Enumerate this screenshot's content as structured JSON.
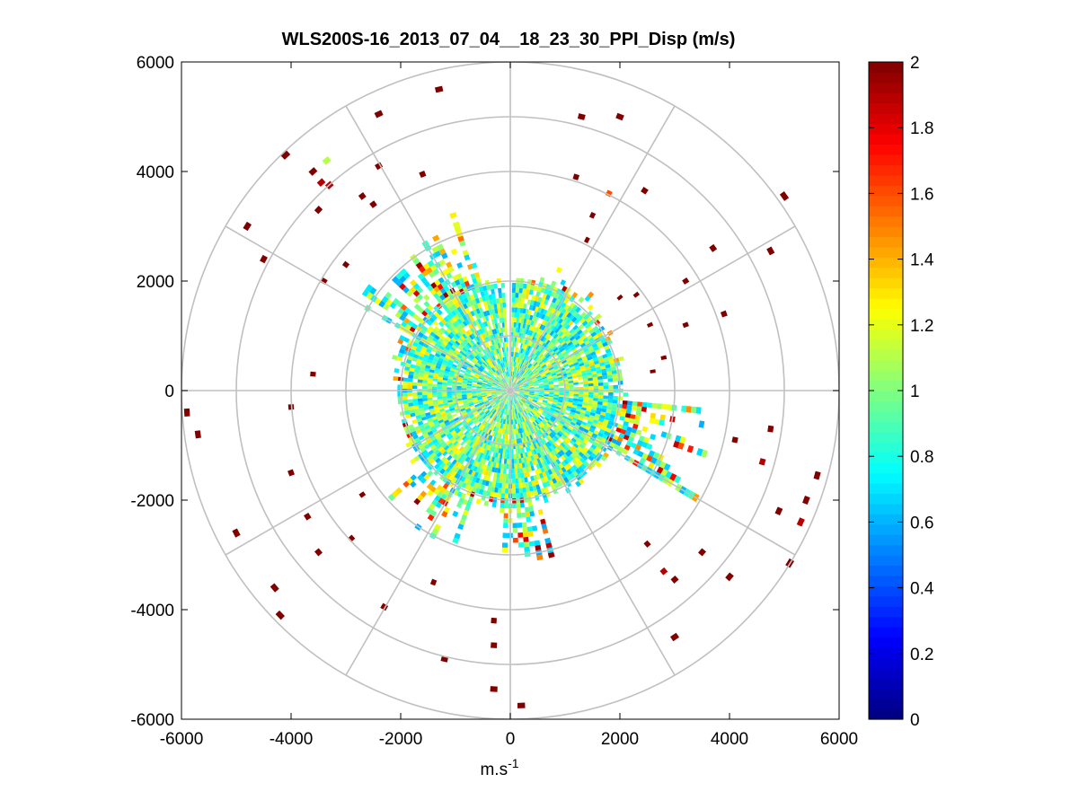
{
  "chart_data": {
    "type": "polar-heatmap",
    "title": "WLS200S-16_2013_07_04__18_23_30_PPI_Disp (m/s)",
    "xlabel": "m.s",
    "xlabel_superscript": "-1",
    "ylabel": "",
    "xlim": [
      -6000,
      6000
    ],
    "ylim": [
      -6000,
      6000
    ],
    "x_ticks": [
      "-6000",
      "-4000",
      "-2000",
      "0",
      "2000",
      "4000",
      "6000"
    ],
    "y_ticks": [
      "6000",
      "4000",
      "2000",
      "0",
      "-2000",
      "-4000",
      "-6000"
    ],
    "x_tick_values": [
      -6000,
      -4000,
      -2000,
      0,
      2000,
      4000,
      6000
    ],
    "y_tick_values": [
      6000,
      4000,
      2000,
      0,
      -2000,
      -4000,
      -6000
    ],
    "polar_grid": {
      "ring_radii": [
        1000,
        2000,
        3000,
        4000,
        5000,
        6000
      ],
      "spoke_angles_deg": [
        0,
        30,
        60,
        90,
        120,
        150,
        180,
        210,
        240,
        270,
        300,
        330
      ]
    },
    "colorbar": {
      "colormap": "jet",
      "range": [
        0,
        2
      ],
      "ticks": [
        "2",
        "1.8",
        "1.6",
        "1.4",
        "1.2",
        "1",
        "0.8",
        "0.6",
        "0.4",
        "0.2",
        "0"
      ],
      "tick_values": [
        2,
        1.8,
        1.6,
        1.4,
        1.2,
        1,
        0.8,
        0.6,
        0.4,
        0.2,
        0
      ]
    },
    "data_description": "Dense field of range gates out to ~2000 m with values 0.6-1.3 m/s; scattered far gates out to ~5800 m mostly at 2 m/s (dark red).",
    "dense_field": {
      "inner_range": [
        80,
        1950
      ],
      "extended_sectors": [
        {
          "az_from": 20,
          "az_to": 40,
          "max_range": 2500
        },
        {
          "az_from": 95,
          "az_to": 120,
          "max_range": 4100
        },
        {
          "az_from": 200,
          "az_to": 235,
          "max_range": 3000
        },
        {
          "az_from": 285,
          "az_to": 345,
          "max_range": 3400
        },
        {
          "az_from": 165,
          "az_to": 185,
          "max_range": 3300
        }
      ]
    },
    "far_gates": [
      {
        "x": -1300,
        "y": 5500,
        "v": 2
      },
      {
        "x": -2400,
        "y": 5050,
        "v": 2
      },
      {
        "x": -4100,
        "y": 4300,
        "v": 2
      },
      {
        "x": -3600,
        "y": 4000,
        "v": 2
      },
      {
        "x": -3350,
        "y": 4200,
        "v": 1.1
      },
      {
        "x": -3450,
        "y": 3800,
        "v": 1.9
      },
      {
        "x": -3300,
        "y": 3750,
        "v": 1.9
      },
      {
        "x": -2400,
        "y": 4100,
        "v": 2
      },
      {
        "x": -1600,
        "y": 3950,
        "v": 2
      },
      {
        "x": -2700,
        "y": 3550,
        "v": 2
      },
      {
        "x": -3500,
        "y": 3300,
        "v": 2
      },
      {
        "x": -2500,
        "y": 3400,
        "v": 2
      },
      {
        "x": -4800,
        "y": 3000,
        "v": 2
      },
      {
        "x": -4500,
        "y": 2400,
        "v": 2
      },
      {
        "x": -3400,
        "y": 2000,
        "v": 2
      },
      {
        "x": -3000,
        "y": 2300,
        "v": 2
      },
      {
        "x": -3600,
        "y": 300,
        "v": 2
      },
      {
        "x": -5900,
        "y": -400,
        "v": 2
      },
      {
        "x": -5700,
        "y": -800,
        "v": 2
      },
      {
        "x": -4000,
        "y": -300,
        "v": 2
      },
      {
        "x": -4000,
        "y": -1500,
        "v": 2
      },
      {
        "x": -2700,
        "y": -1900,
        "v": 2
      },
      {
        "x": -3700,
        "y": -2300,
        "v": 2
      },
      {
        "x": -5000,
        "y": -2600,
        "v": 2
      },
      {
        "x": -3500,
        "y": -2950,
        "v": 2
      },
      {
        "x": -2900,
        "y": -2700,
        "v": 2
      },
      {
        "x": -4300,
        "y": -3600,
        "v": 2
      },
      {
        "x": -4200,
        "y": -4100,
        "v": 2
      },
      {
        "x": -2300,
        "y": -3950,
        "v": 2
      },
      {
        "x": -1400,
        "y": -3500,
        "v": 2
      },
      {
        "x": -1200,
        "y": -4900,
        "v": 2
      },
      {
        "x": -300,
        "y": -4200,
        "v": 2
      },
      {
        "x": -300,
        "y": -4650,
        "v": 2
      },
      {
        "x": -300,
        "y": -5450,
        "v": 2
      },
      {
        "x": 200,
        "y": -5750,
        "v": 2
      },
      {
        "x": 1300,
        "y": 5000,
        "v": 2
      },
      {
        "x": 2000,
        "y": 5000,
        "v": 2
      },
      {
        "x": 1200,
        "y": 3900,
        "v": 2
      },
      {
        "x": 1800,
        "y": 3600,
        "v": 1.6
      },
      {
        "x": 2450,
        "y": 3650,
        "v": 2
      },
      {
        "x": 1500,
        "y": 3200,
        "v": 2
      },
      {
        "x": 1400,
        "y": 2750,
        "v": 2
      },
      {
        "x": 2000,
        "y": 1700,
        "v": 2
      },
      {
        "x": 2300,
        "y": 1750,
        "v": 2
      },
      {
        "x": 2550,
        "y": 1200,
        "v": 2
      },
      {
        "x": 3200,
        "y": 2000,
        "v": 2
      },
      {
        "x": 3700,
        "y": 2600,
        "v": 2
      },
      {
        "x": 4750,
        "y": 2550,
        "v": 2
      },
      {
        "x": 5000,
        "y": 3550,
        "v": 2
      },
      {
        "x": 3900,
        "y": 1400,
        "v": 2
      },
      {
        "x": 3200,
        "y": 1200,
        "v": 2
      },
      {
        "x": 2600,
        "y": 350,
        "v": 2
      },
      {
        "x": 2800,
        "y": 600,
        "v": 2
      },
      {
        "x": 4750,
        "y": -700,
        "v": 2
      },
      {
        "x": 4100,
        "y": -900,
        "v": 2
      },
      {
        "x": 4600,
        "y": -1300,
        "v": 1.9
      },
      {
        "x": 5600,
        "y": -1550,
        "v": 2
      },
      {
        "x": 5400,
        "y": -2000,
        "v": 2
      },
      {
        "x": 4900,
        "y": -2200,
        "v": 2
      },
      {
        "x": 5300,
        "y": -2400,
        "v": 1.9
      },
      {
        "x": 3500,
        "y": -2950,
        "v": 2
      },
      {
        "x": 2500,
        "y": -2800,
        "v": 2
      },
      {
        "x": 2800,
        "y": -3300,
        "v": 1.9
      },
      {
        "x": 3000,
        "y": -3450,
        "v": 2
      },
      {
        "x": 4000,
        "y": -3400,
        "v": 2
      },
      {
        "x": 5100,
        "y": -3150,
        "v": 2
      },
      {
        "x": 3000,
        "y": -4500,
        "v": 2
      }
    ]
  }
}
